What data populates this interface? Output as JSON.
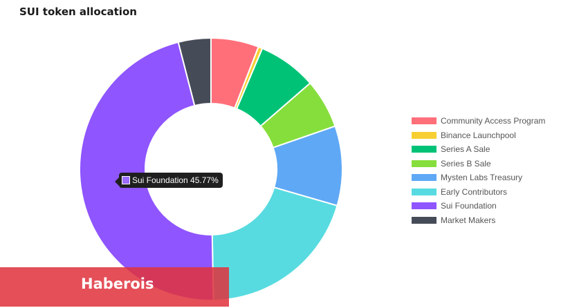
{
  "title": "SUI token allocation",
  "chart_data": {
    "type": "pie",
    "style": "donut",
    "legend_position": "right",
    "categories": [
      "Community Access Program",
      "Binance Launchpool",
      "Series A Sale",
      "Series B Sale",
      "Mysten Labs Treasury",
      "Early Contributors",
      "Sui Foundation",
      "Market Makers"
    ],
    "values": [
      5.82,
      0.5,
      7.14,
      6.0,
      9.69,
      20.0,
      45.77,
      3.96
    ],
    "colors": [
      "#ff6f7a",
      "#f7cf32",
      "#00c277",
      "#86de3c",
      "#5fa8f6",
      "#57dbe0",
      "#8f55ff",
      "#464c57"
    ]
  },
  "tooltip": {
    "label": "Sui Foundation 45.77%",
    "color": "#9b6cff"
  },
  "watermark": {
    "text": "Haberois"
  }
}
